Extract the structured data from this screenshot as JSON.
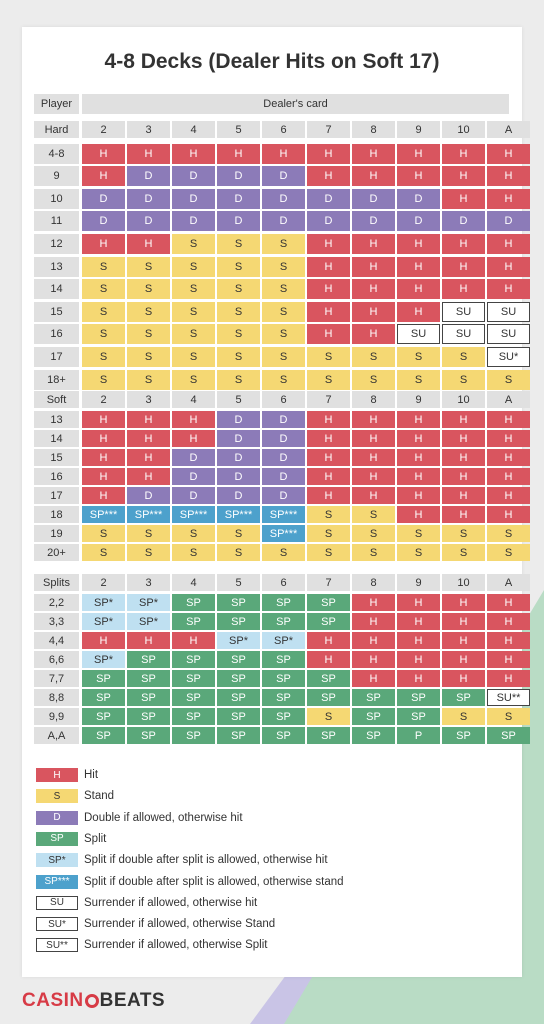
{
  "title": "4-8 Decks (Dealer Hits on Soft 17)",
  "headers": {
    "player": "Player",
    "dealer": "Dealer's card"
  },
  "dealer_cards": [
    "2",
    "3",
    "4",
    "5",
    "6",
    "7",
    "8",
    "9",
    "10",
    "A"
  ],
  "sections": [
    {
      "label": "Hard",
      "rows": [
        {
          "label": "4-8",
          "cells": [
            "H",
            "H",
            "H",
            "H",
            "H",
            "H",
            "H",
            "H",
            "H",
            "H"
          ]
        },
        {
          "label": "9",
          "cells": [
            "H",
            "D",
            "D",
            "D",
            "D",
            "H",
            "H",
            "H",
            "H",
            "H"
          ]
        },
        {
          "label": "10",
          "cells": [
            "D",
            "D",
            "D",
            "D",
            "D",
            "D",
            "D",
            "D",
            "H",
            "H"
          ]
        },
        {
          "label": "11",
          "cells": [
            "D",
            "D",
            "D",
            "D",
            "D",
            "D",
            "D",
            "D",
            "D",
            "D"
          ]
        },
        {
          "label": "12",
          "cells": [
            "H",
            "H",
            "S",
            "S",
            "S",
            "H",
            "H",
            "H",
            "H",
            "H"
          ]
        },
        {
          "label": "13",
          "cells": [
            "S",
            "S",
            "S",
            "S",
            "S",
            "H",
            "H",
            "H",
            "H",
            "H"
          ]
        },
        {
          "label": "14",
          "cells": [
            "S",
            "S",
            "S",
            "S",
            "S",
            "H",
            "H",
            "H",
            "H",
            "H"
          ]
        },
        {
          "label": "15",
          "cells": [
            "S",
            "S",
            "S",
            "S",
            "S",
            "H",
            "H",
            "H",
            "SU",
            "SU"
          ]
        },
        {
          "label": "16",
          "cells": [
            "S",
            "S",
            "S",
            "S",
            "S",
            "H",
            "H",
            "SU",
            "SU",
            "SU"
          ]
        },
        {
          "label": "17",
          "cells": [
            "S",
            "S",
            "S",
            "S",
            "S",
            "S",
            "S",
            "S",
            "S",
            "SU*"
          ]
        },
        {
          "label": "18+",
          "cells": [
            "S",
            "S",
            "S",
            "S",
            "S",
            "S",
            "S",
            "S",
            "S",
            "S"
          ]
        }
      ]
    },
    {
      "label": "Soft",
      "rows": [
        {
          "label": "13",
          "cells": [
            "H",
            "H",
            "H",
            "D",
            "D",
            "H",
            "H",
            "H",
            "H",
            "H"
          ]
        },
        {
          "label": "14",
          "cells": [
            "H",
            "H",
            "H",
            "D",
            "D",
            "H",
            "H",
            "H",
            "H",
            "H"
          ]
        },
        {
          "label": "15",
          "cells": [
            "H",
            "H",
            "D",
            "D",
            "D",
            "H",
            "H",
            "H",
            "H",
            "H"
          ]
        },
        {
          "label": "16",
          "cells": [
            "H",
            "H",
            "D",
            "D",
            "D",
            "H",
            "H",
            "H",
            "H",
            "H"
          ]
        },
        {
          "label": "17",
          "cells": [
            "H",
            "D",
            "D",
            "D",
            "D",
            "H",
            "H",
            "H",
            "H",
            "H"
          ]
        },
        {
          "label": "18",
          "cells": [
            "SP***",
            "SP***",
            "SP***",
            "SP***",
            "SP***",
            "S",
            "S",
            "H",
            "H",
            "H"
          ]
        },
        {
          "label": "19",
          "cells": [
            "S",
            "S",
            "S",
            "S",
            "SP***",
            "S",
            "S",
            "S",
            "S",
            "S"
          ]
        },
        {
          "label": "20+",
          "cells": [
            "S",
            "S",
            "S",
            "S",
            "S",
            "S",
            "S",
            "S",
            "S",
            "S"
          ]
        }
      ]
    },
    {
      "label": "Splits",
      "rows": [
        {
          "label": "2,2",
          "cells": [
            "SP*",
            "SP*",
            "SP",
            "SP",
            "SP",
            "SP",
            "H",
            "H",
            "H",
            "H"
          ]
        },
        {
          "label": "3,3",
          "cells": [
            "SP*",
            "SP*",
            "SP",
            "SP",
            "SP",
            "SP",
            "H",
            "H",
            "H",
            "H"
          ]
        },
        {
          "label": "4,4",
          "cells": [
            "H",
            "H",
            "H",
            "SP*",
            "SP*",
            "H",
            "H",
            "H",
            "H",
            "H"
          ]
        },
        {
          "label": "6,6",
          "cells": [
            "SP*",
            "SP",
            "SP",
            "SP",
            "SP",
            "H",
            "H",
            "H",
            "H",
            "H"
          ]
        },
        {
          "label": "7,7",
          "cells": [
            "SP",
            "SP",
            "SP",
            "SP",
            "SP",
            "SP",
            "H",
            "H",
            "H",
            "H"
          ]
        },
        {
          "label": "8,8",
          "cells": [
            "SP",
            "SP",
            "SP",
            "SP",
            "SP",
            "SP",
            "SP",
            "SP",
            "SP",
            "SU**"
          ]
        },
        {
          "label": "9,9",
          "cells": [
            "SP",
            "SP",
            "SP",
            "SP",
            "SP",
            "S",
            "SP",
            "SP",
            "S",
            "S"
          ]
        },
        {
          "label": "A,A",
          "cells": [
            "SP",
            "SP",
            "SP",
            "SP",
            "SP",
            "SP",
            "SP",
            "P",
            "SP",
            "SP"
          ]
        }
      ]
    }
  ],
  "legend": [
    {
      "code": "H",
      "text": "Hit"
    },
    {
      "code": "S",
      "text": "Stand"
    },
    {
      "code": "D",
      "text": "Double if allowed, otherwise hit"
    },
    {
      "code": "SP",
      "text": "Split"
    },
    {
      "code": "SP*",
      "text": "Split if double after split is allowed, otherwise hit"
    },
    {
      "code": "SP***",
      "text": "Split if double after split is allowed, otherwise stand"
    },
    {
      "code": "SU",
      "text": "Surrender if allowed, otherwise hit"
    },
    {
      "code": "SU*",
      "text": "Surrender if allowed, otherwise Stand"
    },
    {
      "code": "SU**",
      "text": "Surrender if allowed, otherwise Split"
    }
  ],
  "brand": {
    "part1": "CASIN",
    "part2": "BEATS"
  },
  "colors": {
    "hit": "#d9555f",
    "stand": "#f5d873",
    "double": "#8c7bb8",
    "split": "#5aa87a",
    "split_das_hit": "#bfe0f1",
    "split_das_stand": "#4da1cc",
    "surrender": "#ffffff",
    "header": "#e0e0e0",
    "brand_red": "#d73b46"
  }
}
